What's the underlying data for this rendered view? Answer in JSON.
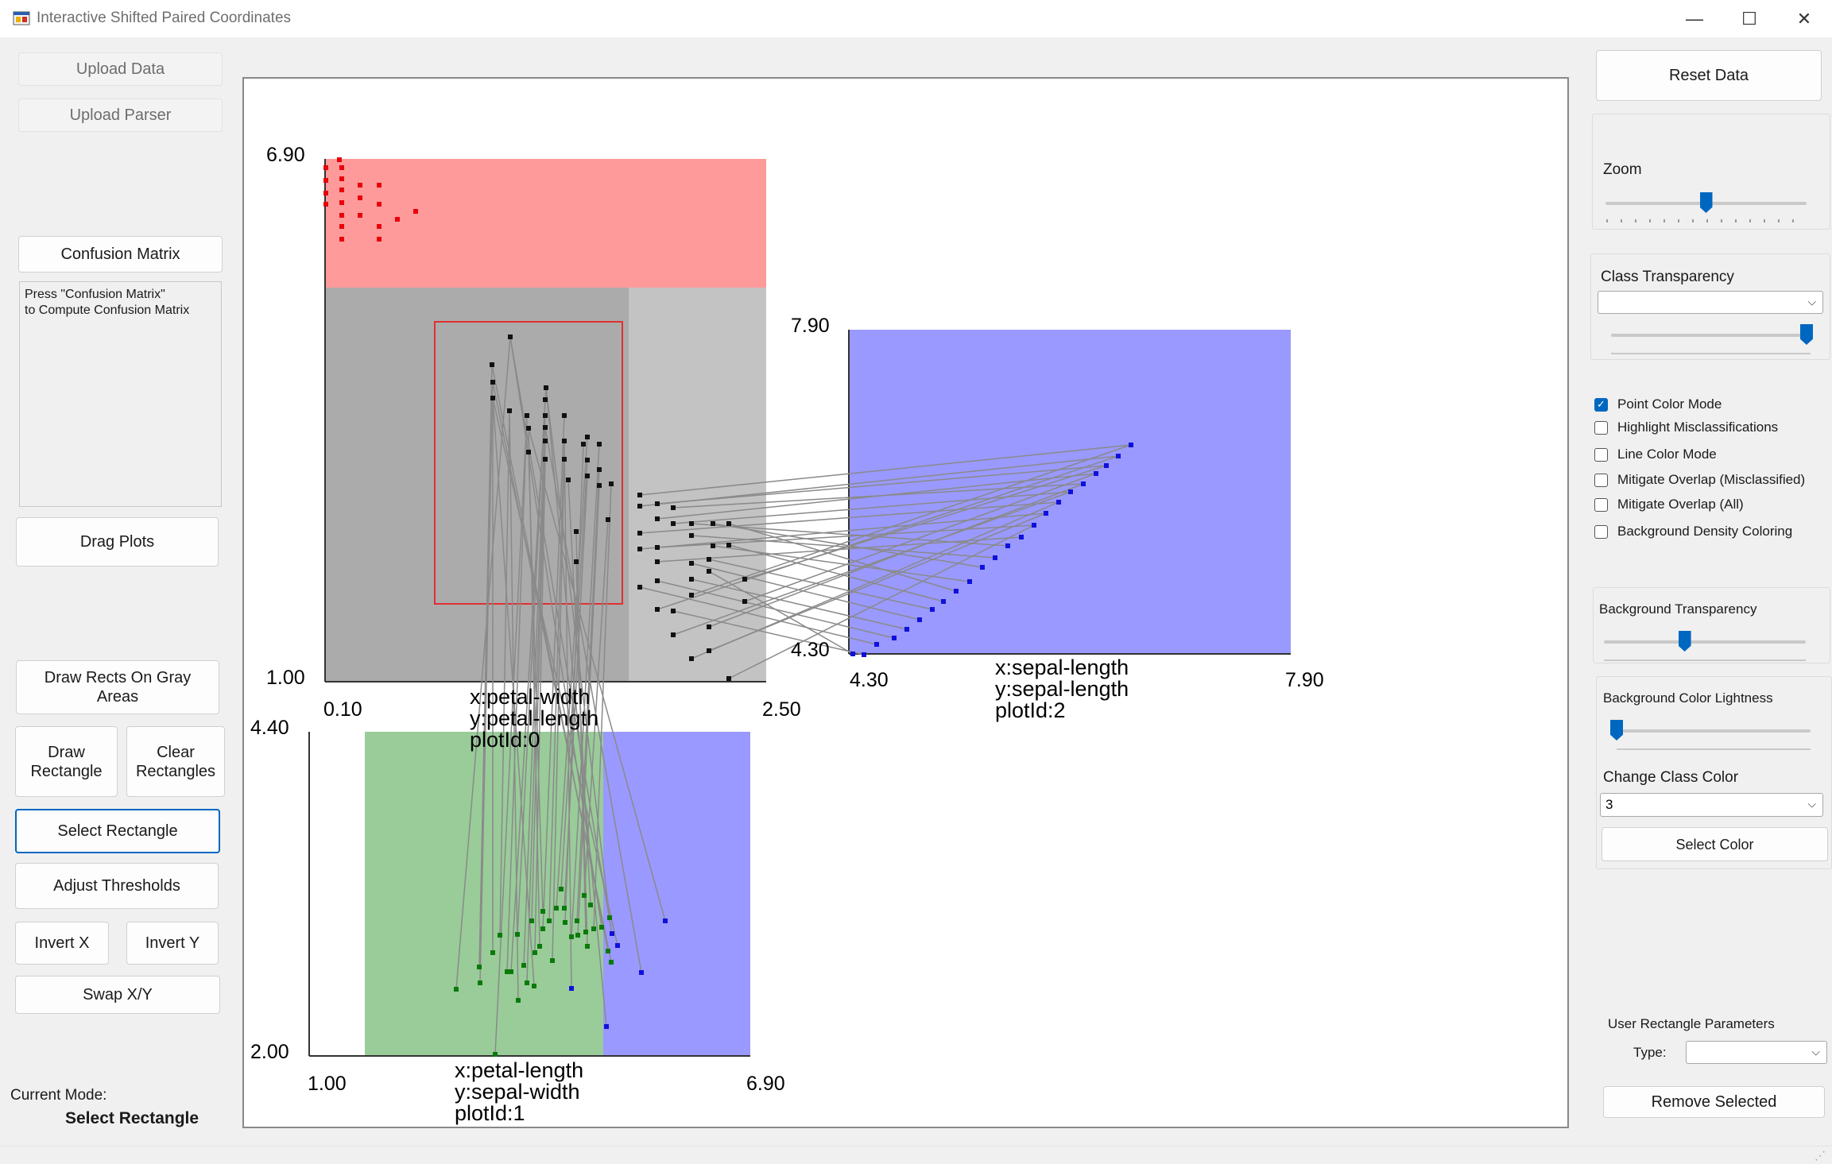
{
  "window": {
    "title": "Interactive Shifted Paired Coordinates",
    "minimize": "—",
    "maximize": "☐",
    "close": "✕"
  },
  "left_panel": {
    "upload_data": "Upload Data",
    "upload_parser": "Upload Parser",
    "confusion_matrix": "Confusion Matrix",
    "confusion_text_line1": "Press \"Confusion Matrix\"",
    "confusion_text_line2": "to Compute Confusion Matrix",
    "drag_plots": "Drag Plots",
    "draw_rects_line1": "Draw Rects On Gray",
    "draw_rects_line2": "Areas",
    "draw_rectangle_line1": "Draw",
    "draw_rectangle_line2": "Rectangle",
    "clear_rectangles_line1": "Clear",
    "clear_rectangles_line2": "Rectangles",
    "select_rectangle": "Select Rectangle",
    "adjust_thresholds": "Adjust Thresholds",
    "invert_x": "Invert X",
    "invert_y": "Invert Y",
    "swap_xy": "Swap X/Y",
    "current_mode_label": "Current Mode:",
    "current_mode_value": "Select Rectangle"
  },
  "right_panel": {
    "reset_data": "Reset Data",
    "zoom_label": "Zoom",
    "zoom_level": 0.5,
    "class_transparency_label": "Class Transparency",
    "class_transparency_selected": "",
    "class_transparency_level": 0.98,
    "checkboxes": [
      {
        "label": "Point Color Mode",
        "checked": true
      },
      {
        "label": "Highlight Misclassifications",
        "checked": false
      },
      {
        "label": "Line Color Mode",
        "checked": false
      },
      {
        "label": "Mitigate Overlap (Misclassified)",
        "checked": false
      },
      {
        "label": "Mitigate Overlap (All)",
        "checked": false
      },
      {
        "label": "Background Density Coloring",
        "checked": false
      }
    ],
    "background_transparency_label": "Background Transparency",
    "background_transparency_level": 0.4,
    "background_lightness_label": "Background Color Lightness",
    "background_lightness_level": 0.0,
    "change_class_color_label": "Change Class Color",
    "class_selected": "3",
    "select_color": "Select Color",
    "user_rect_params_label": "User Rectangle Parameters",
    "type_label": "Type:",
    "type_selected": "",
    "remove_selected": "Remove Selected"
  },
  "colors": {
    "class_red": "#e8000a",
    "class_black": "#111111",
    "class_blue": "#1010dd",
    "class_green": "#0a7a0a",
    "region_red": "#ff9a9a",
    "region_blue": "#9999ff",
    "region_green": "#99cc99",
    "region_gray_dark": "#ababab",
    "region_gray_light": "#c3c3c3",
    "connector": "#8a8a8a",
    "user_rect": "#e03030"
  },
  "plots": [
    {
      "id": 0,
      "x_min": "0.10",
      "x_max": "2.50",
      "y_min": "1.00",
      "y_max": "6.90",
      "label_x": "x:petal-width",
      "label_y": "y:petal-length",
      "label_id": "plotId:0"
    },
    {
      "id": 1,
      "x_min": "1.00",
      "x_max": "6.90",
      "y_min": "2.00",
      "y_max": "4.40",
      "label_x": "x:petal-length",
      "label_y": "y:sepal-width",
      "label_id": "plotId:1"
    },
    {
      "id": 2,
      "x_min": "4.30",
      "x_max": "7.90",
      "y_min": "4.30",
      "y_max": "7.90",
      "label_x": "x:sepal-length",
      "label_y": "y:sepal-length",
      "label_id": "plotId:2"
    }
  ]
}
